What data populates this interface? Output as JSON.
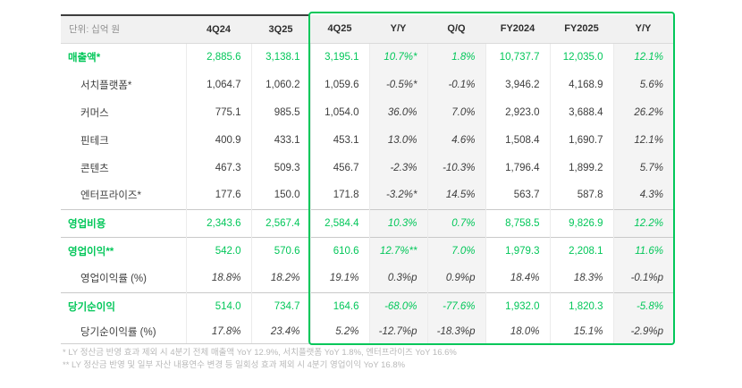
{
  "colors": {
    "accent_green": "#03c75a",
    "shade_column_bg": "#f4f4f4",
    "header_bg": "#f1f1f1"
  },
  "chart_data": {
    "type": "table",
    "title": "",
    "unit_label": "단위: 십억 원",
    "columns": [
      "4Q24",
      "3Q25",
      "4Q25",
      "Y/Y",
      "Q/Q",
      "FY2024",
      "FY2025",
      "Y/Y"
    ],
    "highlighted_columns": [
      "4Q25",
      "Y/Y",
      "Q/Q",
      "FY2024",
      "FY2025",
      "Y/Y"
    ],
    "rows": [
      {
        "label": "매출액*",
        "style": "section",
        "divider": false,
        "values": [
          "2,885.6",
          "3,138.1",
          "3,195.1",
          "10.7%*",
          "1.8%",
          "10,737.7",
          "12,035.0",
          "12.1%"
        ]
      },
      {
        "label": "서치플랫폼*",
        "style": "sub",
        "divider": false,
        "values": [
          "1,064.7",
          "1,060.2",
          "1,059.6",
          "-0.5%*",
          "-0.1%",
          "3,946.2",
          "4,168.9",
          "5.6%"
        ]
      },
      {
        "label": "커머스",
        "style": "sub",
        "divider": false,
        "values": [
          "775.1",
          "985.5",
          "1,054.0",
          "36.0%",
          "7.0%",
          "2,923.0",
          "3,688.4",
          "26.2%"
        ]
      },
      {
        "label": "핀테크",
        "style": "sub",
        "divider": false,
        "values": [
          "400.9",
          "433.1",
          "453.1",
          "13.0%",
          "4.6%",
          "1,508.4",
          "1,690.7",
          "12.1%"
        ]
      },
      {
        "label": "콘텐츠",
        "style": "sub",
        "divider": false,
        "values": [
          "467.3",
          "509.3",
          "456.7",
          "-2.3%",
          "-10.3%",
          "1,796.4",
          "1,899.2",
          "5.7%"
        ]
      },
      {
        "label": "엔터프라이즈*",
        "style": "sub",
        "divider": false,
        "values": [
          "177.6",
          "150.0",
          "171.8",
          "-3.2%*",
          "14.5%",
          "563.7",
          "587.8",
          "4.3%"
        ]
      },
      {
        "label": "영업비용",
        "style": "section",
        "divider": true,
        "values": [
          "2,343.6",
          "2,567.4",
          "2,584.4",
          "10.3%",
          "0.7%",
          "8,758.5",
          "9,826.9",
          "12.2%"
        ]
      },
      {
        "label": "영업이익**",
        "style": "section",
        "divider": true,
        "values": [
          "542.0",
          "570.6",
          "610.6",
          "12.7%**",
          "7.0%",
          "1,979.3",
          "2,208.1",
          "11.6%"
        ]
      },
      {
        "label": "영업이익률 (%)",
        "style": "ratio",
        "divider": false,
        "values": [
          "18.8%",
          "18.2%",
          "19.1%",
          "0.3%p",
          "0.9%p",
          "18.4%",
          "18.3%",
          "-0.1%p"
        ]
      },
      {
        "label": "당기순이익",
        "style": "section",
        "divider": true,
        "values": [
          "514.0",
          "734.7",
          "164.6",
          "-68.0%",
          "-77.6%",
          "1,932.0",
          "1,820.3",
          "-5.8%"
        ]
      },
      {
        "label": "당기순이익률 (%)",
        "style": "ratio",
        "divider": false,
        "values": [
          "17.8%",
          "23.4%",
          "5.2%",
          "-12.7%p",
          "-18.3%p",
          "18.0%",
          "15.1%",
          "-2.9%p"
        ]
      }
    ],
    "footnotes": [
      "* LY 정산금 반영 효과 제외 시 4분기 전체 매출액 YoY 12.9%, 서치플랫폼 YoY 1.8%, 엔터프라이즈 YoY 16.6%",
      "** LY 정산금 반영 및 일부 자산 내용연수 변경 등 일회성 효과 제외 시 4분기 영업이익 YoY 16.8%"
    ]
  }
}
